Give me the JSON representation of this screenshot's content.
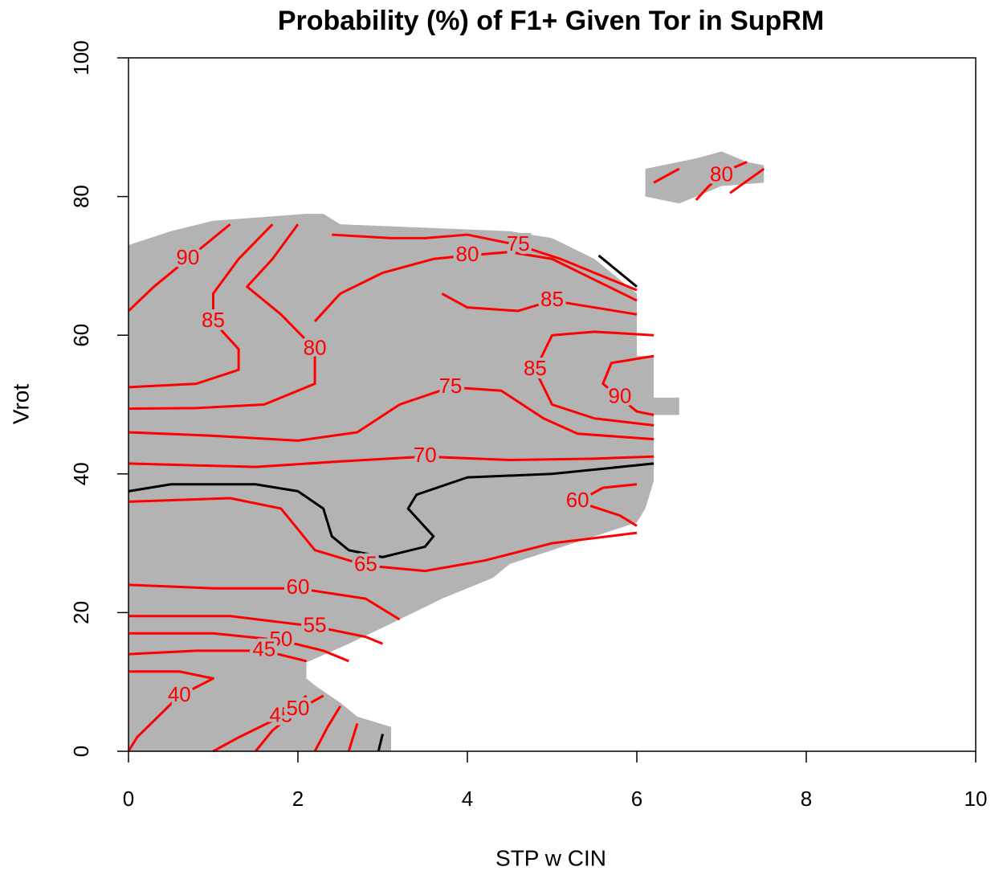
{
  "chart_data": {
    "type": "contour",
    "title": "Probability (%) of F1+ Given Tor in SupRM",
    "x_label": "STP w CIN",
    "y_label": "Vrot",
    "xlim": [
      0,
      10
    ],
    "xticks": [
      0,
      2,
      4,
      6,
      8,
      10
    ],
    "ylim": [
      0,
      100
    ],
    "yticks": [
      0,
      20,
      40,
      60,
      80,
      100
    ],
    "region_color": "#b3b3b3",
    "regions": [
      {
        "x": [
          0,
          3.1,
          3.1,
          2.7,
          2.5,
          2.2,
          2.1,
          2.1,
          2.6,
          3.2,
          3.7,
          4.3,
          4.5,
          5.0,
          5.5,
          6.0,
          6.1,
          6.2,
          6.2,
          6.5,
          6.5,
          6.2,
          6.2,
          6.0,
          6.0,
          5.5,
          5.0,
          4.5,
          3.5,
          2.5,
          2.3,
          2.1,
          1.0,
          0.5,
          0
        ],
        "y": [
          0,
          0,
          3.5,
          5,
          7,
          9.5,
          10.5,
          12.8,
          15.5,
          19,
          22,
          25,
          27,
          29,
          31,
          33,
          35,
          39,
          48.5,
          48.5,
          51,
          51,
          57,
          57,
          66,
          71,
          74,
          75,
          75.5,
          76,
          77.5,
          77.5,
          76.5,
          75,
          73
        ]
      },
      {
        "x": [
          6.1,
          6.1,
          6.7,
          7.0,
          7.3,
          7.5,
          7.5,
          7.0,
          6.5
        ],
        "y": [
          80,
          84,
          85.5,
          86.5,
          85,
          84.5,
          82,
          81.5,
          79
        ]
      }
    ],
    "contours": [
      {
        "level": 90,
        "color": "#ff0000",
        "x": [
          0,
          0.3,
          0.7,
          1.2
        ],
        "y": [
          63.5,
          67,
          71,
          76
        ]
      },
      {
        "level": 85,
        "color": "#ff0000",
        "x": [
          0,
          0.8,
          1.3,
          1.3,
          1.0,
          1.0,
          1.3,
          1.7
        ],
        "y": [
          52.5,
          53,
          55,
          58,
          62,
          66,
          71,
          76
        ]
      },
      {
        "level": 80,
        "color": "#ff0000",
        "x": [
          0,
          0.8,
          1.6,
          2.2,
          2.2,
          1.8,
          1.4,
          1.7,
          2.0
        ],
        "y": [
          49.4,
          49.5,
          50,
          53,
          58,
          63,
          67,
          71,
          76
        ]
      },
      {
        "level": 75,
        "color": "#ff0000",
        "x": [
          0,
          1.0,
          2.0,
          2.7,
          3.2,
          3.8,
          4.4,
          4.9,
          5.3,
          6.2
        ],
        "y": [
          46,
          45.5,
          44.8,
          46,
          50,
          52.5,
          52,
          48,
          45.8,
          45
        ]
      },
      {
        "level": 70,
        "color": "#ff0000",
        "x": [
          0,
          1.5,
          2.5,
          3.5,
          4.5,
          5.5,
          6.2
        ],
        "y": [
          41.5,
          41,
          41.8,
          42.5,
          42,
          42.2,
          42.5
        ]
      },
      {
        "color": "#000000",
        "x": [
          0,
          0.5,
          1.5,
          2.0,
          2.3,
          2.4,
          2.6,
          3.0,
          3.5,
          3.6,
          3.3,
          3.4,
          4.0,
          5.0,
          6.2
        ],
        "y": [
          37.5,
          38.5,
          38.5,
          37.5,
          35,
          31,
          29,
          28,
          29.5,
          31,
          35,
          37,
          39.5,
          40,
          41.5
        ]
      },
      {
        "level": 65,
        "color": "#ff0000",
        "x": [
          0,
          1.2,
          1.8,
          2.0,
          2.2,
          2.8,
          3.5,
          4.2,
          5.0,
          6.0
        ],
        "y": [
          36,
          36.5,
          35,
          32,
          29,
          26.8,
          26,
          27.5,
          30,
          31.5
        ]
      },
      {
        "level": 60,
        "color": "#ff0000",
        "x": [
          0,
          1.0,
          2.0,
          2.8,
          3.2
        ],
        "y": [
          24,
          23.5,
          23.5,
          22,
          19
        ]
      },
      {
        "level": 60,
        "color": "#ff0000",
        "x": [
          6.0,
          5.6,
          5.3,
          5.8,
          6.0
        ],
        "y": [
          38.5,
          38,
          36,
          34,
          32.5
        ]
      },
      {
        "level": 55,
        "color": "#ff0000",
        "x": [
          0,
          1.2,
          2.2,
          2.8,
          3.0
        ],
        "y": [
          19.5,
          19.5,
          18,
          16.5,
          15.5
        ]
      },
      {
        "level": 50,
        "color": "#ff0000",
        "x": [
          0,
          1.0,
          1.8,
          2.3,
          2.6
        ],
        "y": [
          17,
          17,
          16,
          14.5,
          13
        ]
      },
      {
        "level": 45,
        "color": "#ff0000",
        "x": [
          0,
          0.8,
          1.6,
          2.1
        ],
        "y": [
          14,
          14.5,
          14.5,
          13
        ]
      },
      {
        "level": 40,
        "color": "#ff0000",
        "x": [
          0,
          0.6,
          1.0,
          0.6,
          0.1,
          0
        ],
        "y": [
          11.5,
          11.5,
          10.5,
          8,
          2,
          0
        ]
      },
      {
        "level": 45,
        "color": "#ff0000",
        "x": [
          1.0,
          1.3,
          1.8,
          2.1
        ],
        "y": [
          0,
          2,
          5,
          8
        ]
      },
      {
        "level": 50,
        "color": "#ff0000",
        "x": [
          1.5,
          1.7,
          2.0,
          2.3
        ],
        "y": [
          0,
          3,
          6,
          8
        ]
      },
      {
        "color": "#ff0000",
        "x": [
          2.2,
          2.35,
          2.5
        ],
        "y": [
          0,
          3.5,
          6.5
        ]
      },
      {
        "color": "#ff0000",
        "x": [
          2.6,
          2.65,
          2.7
        ],
        "y": [
          0,
          2,
          4
        ]
      },
      {
        "color": "#000000",
        "x": [
          2.95,
          3.0
        ],
        "y": [
          0,
          2.5
        ]
      },
      {
        "level": 75,
        "color": "#ff0000",
        "x": [
          2.4,
          3.1,
          3.5,
          4.0,
          4.6,
          5.1,
          5.6,
          6.0
        ],
        "y": [
          74.5,
          74,
          74,
          74.5,
          73,
          71,
          68.5,
          66.5
        ]
      },
      {
        "level": 80,
        "color": "#ff0000",
        "x": [
          2.2,
          2.5,
          3.0,
          3.6,
          4.0,
          4.5,
          5.0,
          5.5,
          6.0
        ],
        "y": [
          62,
          66,
          69,
          71,
          71.5,
          72,
          71,
          68,
          65
        ]
      },
      {
        "level": 85,
        "color": "#ff0000",
        "x": [
          3.7,
          4.0,
          4.6,
          5.0,
          5.5,
          6.0
        ],
        "y": [
          66,
          64,
          63.5,
          65,
          64,
          63
        ]
      },
      {
        "level": 85,
        "color": "#ff0000",
        "x": [
          6.2,
          5.5,
          5.0,
          4.8,
          5.0,
          5.5,
          6.2
        ],
        "y": [
          60,
          60.5,
          60,
          55,
          50,
          48,
          47
        ]
      },
      {
        "level": 90,
        "color": "#ff0000",
        "x": [
          6.2,
          5.7,
          5.6,
          5.8,
          6.0,
          6.2
        ],
        "y": [
          57,
          56,
          53,
          51,
          49,
          48.5
        ]
      },
      {
        "color": "#000000",
        "x": [
          5.55,
          5.8,
          6.0
        ],
        "y": [
          71.5,
          69,
          67
        ]
      },
      {
        "color": "#ff0000",
        "x": [
          6.2,
          6.5
        ],
        "y": [
          82,
          84
        ]
      },
      {
        "level": 80,
        "color": "#ff0000",
        "x": [
          6.7,
          6.85,
          7.0,
          7.15,
          7.3
        ],
        "y": [
          79.5,
          81.5,
          83,
          84.2,
          85
        ]
      },
      {
        "color": "#ff0000",
        "x": [
          7.1,
          7.5
        ],
        "y": [
          80.5,
          84
        ]
      }
    ]
  }
}
